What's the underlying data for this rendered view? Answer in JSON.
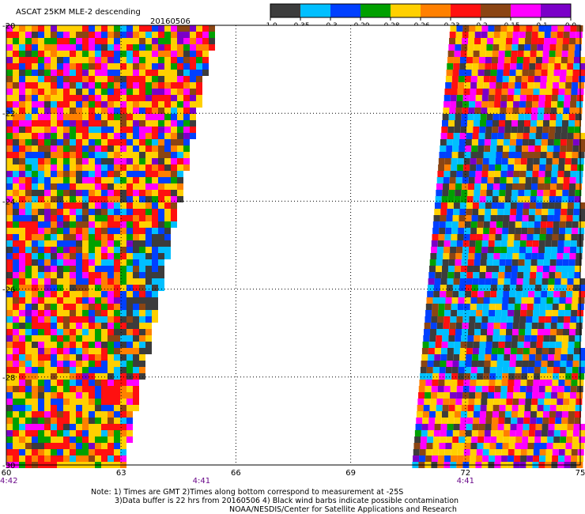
{
  "header": {
    "title": "ASCAT 25KM MLE-2 descending",
    "date": "20160506"
  },
  "colorbar": {
    "colors": [
      "#3c3c3c",
      "#00bfff",
      "#0040ff",
      "#00a000",
      "#ffd000",
      "#ff8000",
      "#ff1010",
      "#8b4513",
      "#ff00ff",
      "#7a00c8"
    ],
    "ticks": [
      "-1.0",
      "-0.35",
      "-0.3",
      "-0.29",
      "-0.28",
      "-0.26",
      "-0.23",
      "-0.2",
      "-0.15",
      "-0.1",
      "0.0"
    ]
  },
  "chart_data": {
    "type": "heatmap",
    "x_ticks": [
      "60",
      "63",
      "66",
      "69",
      "72",
      "75"
    ],
    "y_ticks": [
      "-20",
      "-22",
      "-24",
      "-26",
      "-28",
      "-30"
    ],
    "xlim": [
      60,
      75
    ],
    "ylim": [
      -30,
      -20
    ],
    "grid": true,
    "swaths": [
      {
        "lon_west": 60,
        "lon_east_top": 65.4,
        "lon_east_bottom": 63,
        "time": "4:42",
        "time_at_lon": 60
      },
      {
        "lon_west_top": 71.6,
        "lon_west_bottom": 70.6,
        "lon_east": 75,
        "time": "4:41",
        "time_at_lon": 72
      }
    ],
    "swath_time_mid": {
      "time": "4:41",
      "lon": 65.1
    }
  },
  "notes": {
    "line1": "Note: 1) Times are GMT 2)Times along bottom correspond to measurement at -25S",
    "line2": "3)Data buffer is 22 hrs from 20160506 4) Black wind barbs indicate possible contamination",
    "line3": "NOAA/NESDIS/Center for Satellite Applications and Research"
  }
}
